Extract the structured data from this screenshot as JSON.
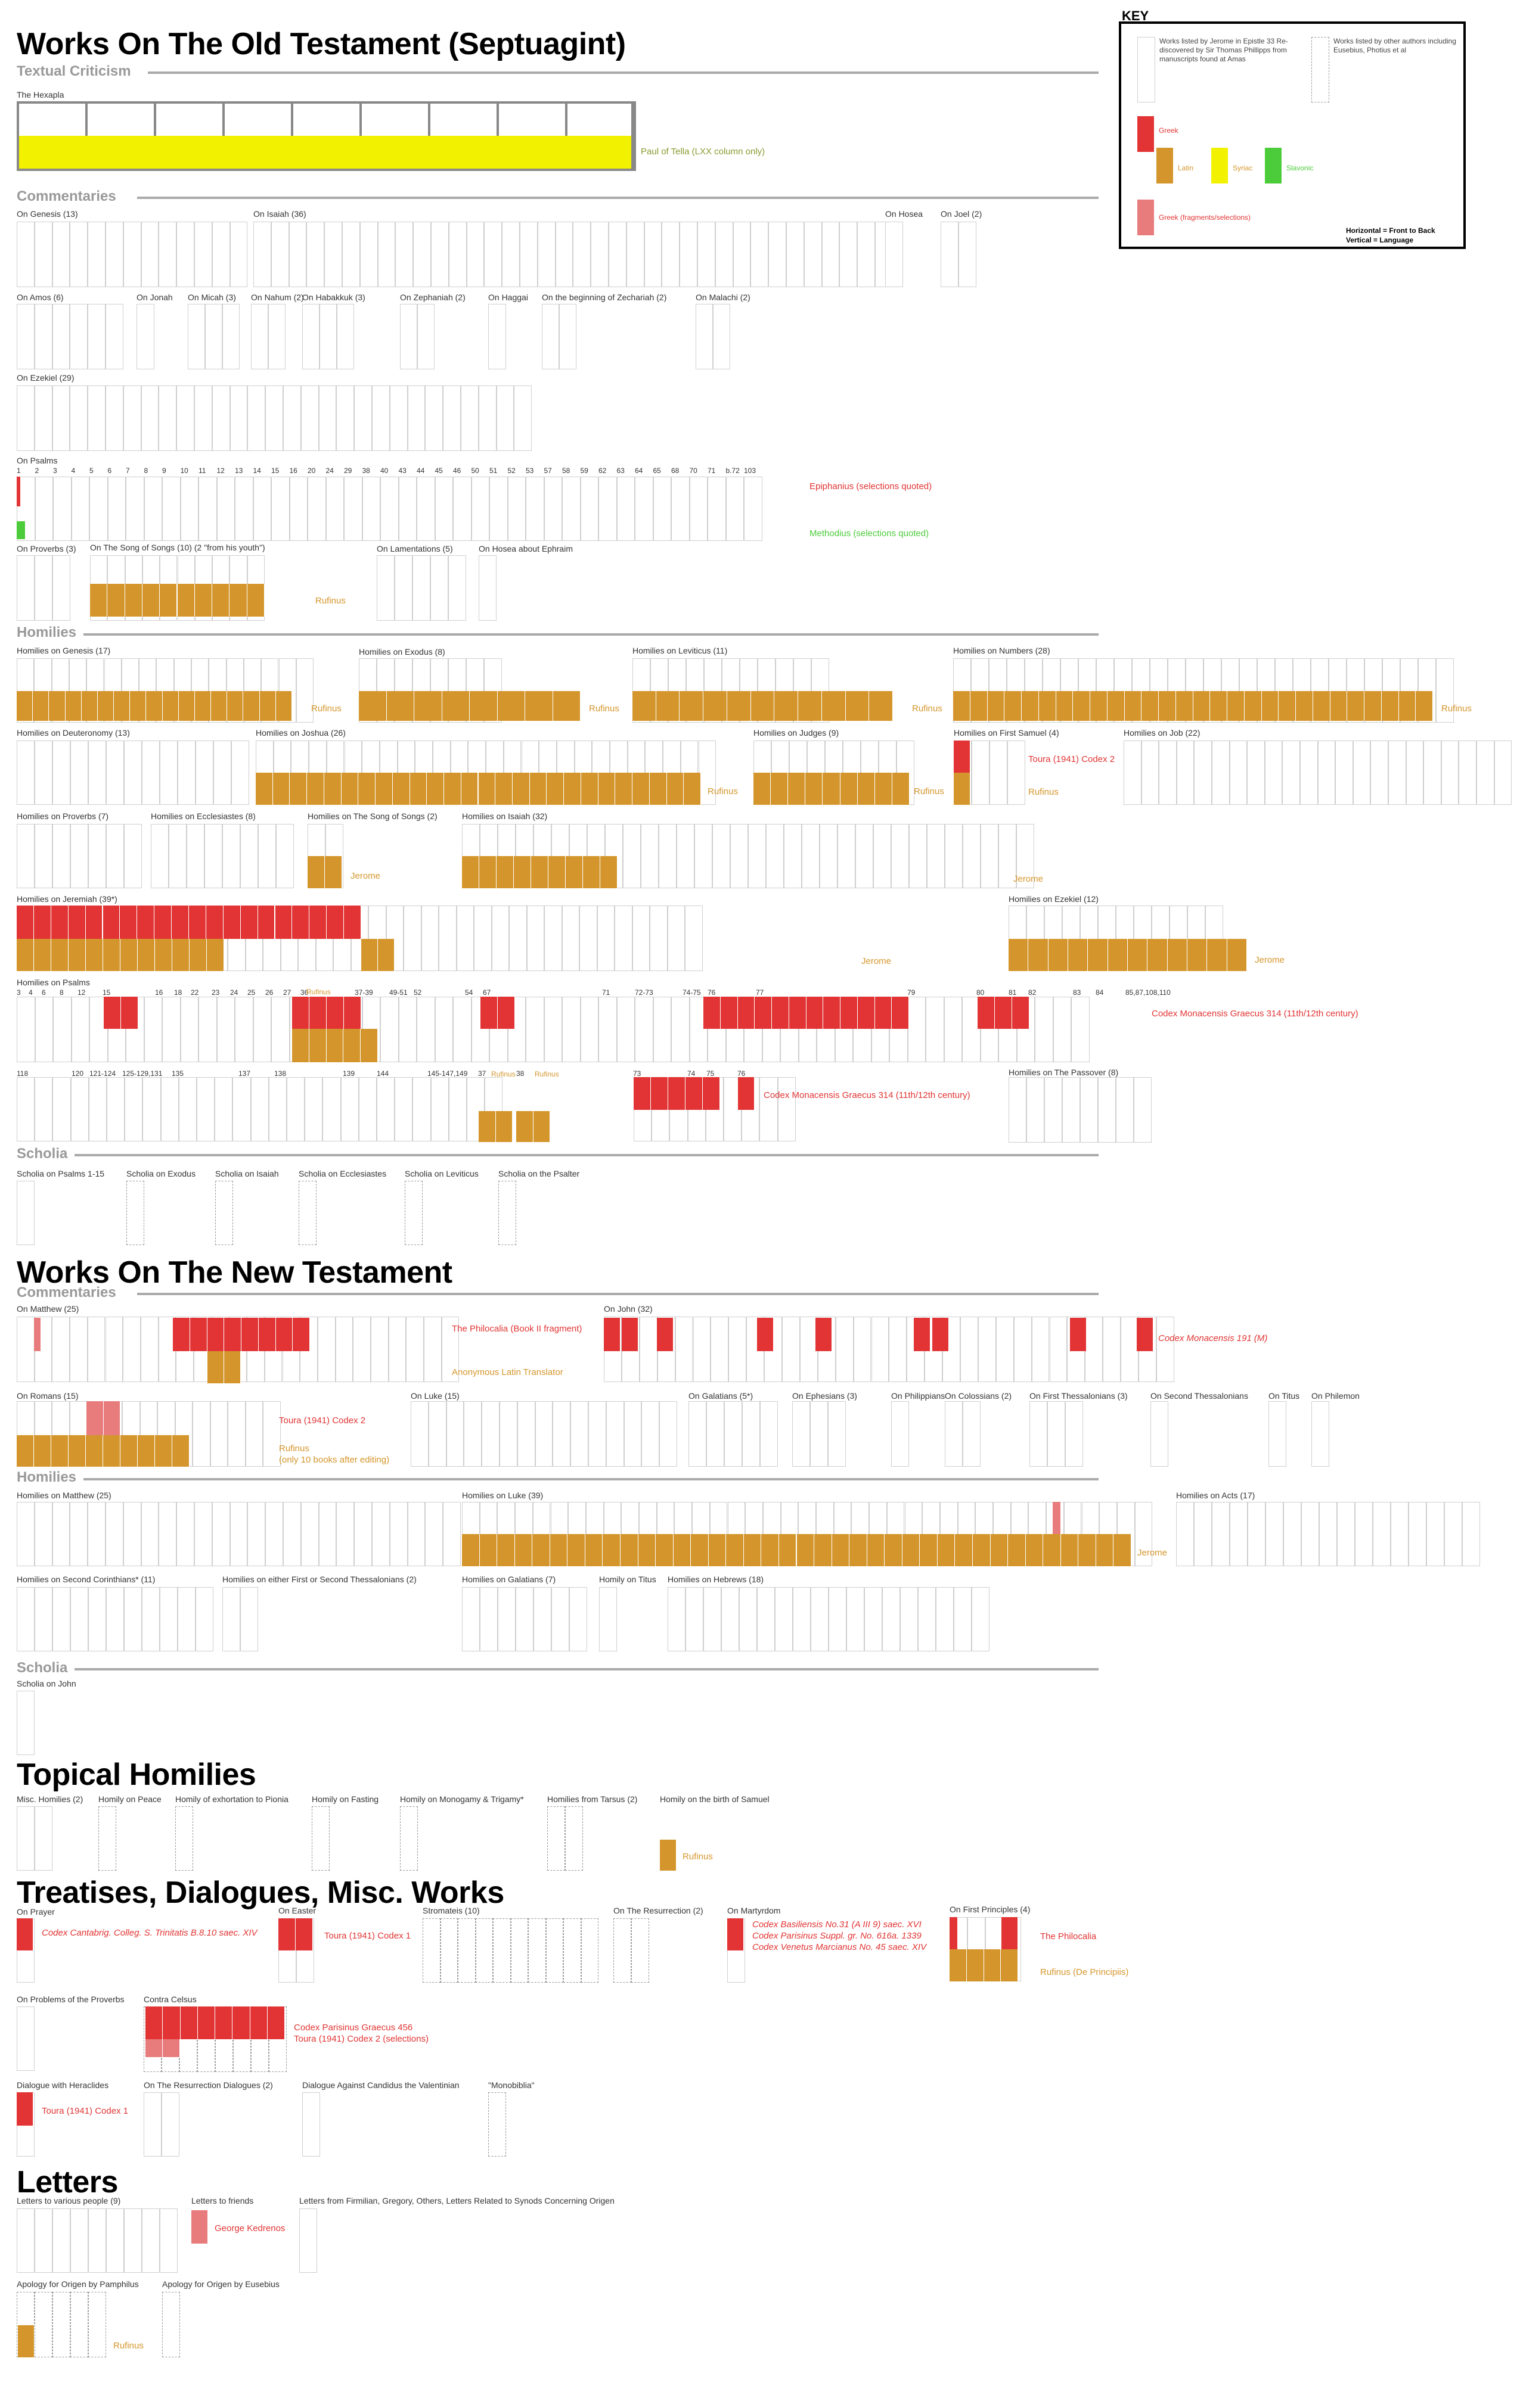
{
  "colors": {
    "greek": "#e23434",
    "latin": "#d4962c",
    "syriac": "#f2f200",
    "slavonic": "#4ccc3a",
    "greek_fragments": "#e87c7c",
    "book_border": "#cfcfcf",
    "rule": "#aaaaaa",
    "subheading": "#999999"
  },
  "headings": {
    "ot": "Works On The Old Testament (Septuagint)",
    "nt": "Works On The New Testament",
    "topical": "Topical Homilies",
    "treatises": "Treatises, Dialogues, Misc. Works",
    "letters": "Letters",
    "textual_criticism": "Textual Criticism",
    "commentaries": "Commentaries",
    "homilies": "Homilies",
    "scholia": "Scholia"
  },
  "key": {
    "title": "KEY",
    "jerome": "Works listed by Jerome in Epistle 33 Re-discovered by Sir Thomas Phillipps from manuscripts found at Amas",
    "others": "Works listed by other authors including Eusebius, Photius et al",
    "greek": "Greek",
    "latin": "Latin",
    "syriac": "Syriac",
    "slavonic": "Slavonic",
    "greek_fragments": "Greek (fragments/selections)",
    "horizontal": "Horizontal = Front to Back",
    "vertical": "Vertical = Language"
  },
  "notes": {
    "paul_of_tella": "Paul of Tella (LXX column only)",
    "epiphanius": "Epiphanius (selections quoted)",
    "methodius": "Methodius (selections quoted)",
    "rufinus": "Rufinus",
    "jerome": "Jerome",
    "toura_codex2": "Toura (1941) Codex 2",
    "codex_monacensis_314": "Codex Monacensis Graecus 314 (11th/12th century)",
    "philocalia_fragment": "The Philocalia (Book II fragment)",
    "anonymous_latin": "Anonymous Latin Translator",
    "codex_monacensis_191": "Codex Monacensis 191 (M)",
    "rufinus_romans": "Rufinus\n(only 10 books after editing)",
    "cantabrig": "Codex Cantabrig. Colleg. S. Trinitatis B.8.10 saec. XIV",
    "toura_codex1": "Toura (1941) Codex 1",
    "martyrdom": "Codex Basiliensis No.31 (A III 9) saec. XVI\nCodex Parisinus Suppl. gr. No. 616a. 1339\nCodex Venetus Marcianus No. 45 saec. XIV",
    "philocalia": "The Philocalia",
    "rufinus_principiis": "Rufinus (De Principiis)",
    "contra_celsus": "Codex Parisinus Graecus 456\nToura (1941) Codex 2 (selections)",
    "george_kedrenos": "George Kedrenos"
  },
  "psalm_numbers_top": [
    "1",
    "2",
    "3",
    "4",
    "5",
    "6",
    "7",
    "8",
    "9",
    "10",
    "11",
    "12",
    "13",
    "14",
    "15",
    "16",
    "20",
    "24",
    "29",
    "38",
    "40",
    "43",
    "44",
    "45",
    "46",
    "50",
    "51",
    "52",
    "53",
    "57",
    "58",
    "59",
    "62",
    "63",
    "64",
    "65",
    "68",
    "70",
    "71",
    "b.72",
    "103"
  ],
  "hom_psalm_numbers_1": [
    "3",
    "4",
    "6",
    "8",
    "12",
    "15",
    "16",
    "18",
    "22",
    "23",
    "24",
    "25",
    "26",
    "27",
    "36",
    "37-39",
    "49-51",
    "52",
    "54",
    "67",
    "71",
    "72-73",
    "74-75",
    "76",
    "77",
    "79",
    "80",
    "81",
    "82",
    "83",
    "84",
    "85,87,108,110"
  ],
  "hom_psalm_numbers_2": [
    "118",
    "120",
    "121-124",
    "125-129,131",
    "135",
    "137",
    "138",
    "139",
    "144",
    "145-147,149",
    "37",
    "38",
    "73",
    "74",
    "75",
    "76"
  ],
  "works": [
    {
      "id": "hexapla",
      "label": "The Hexapla"
    },
    {
      "id": "c-genesis",
      "label": "On Genesis (13)"
    },
    {
      "id": "c-isaiah",
      "label": "On Isaiah (36)"
    },
    {
      "id": "c-hosea",
      "label": "On Hosea"
    },
    {
      "id": "c-joel",
      "label": "On Joel (2)"
    },
    {
      "id": "c-amos",
      "label": "On Amos (6)"
    },
    {
      "id": "c-jonah",
      "label": "On Jonah"
    },
    {
      "id": "c-micah",
      "label": "On Micah (3)"
    },
    {
      "id": "c-nahum",
      "label": "On Nahum (2)"
    },
    {
      "id": "c-habakkuk",
      "label": "On Habakkuk (3)"
    },
    {
      "id": "c-zephaniah",
      "label": "On Zephaniah (2)"
    },
    {
      "id": "c-haggai",
      "label": "On Haggai"
    },
    {
      "id": "c-zechariah",
      "label": "On the beginning of Zechariah (2)"
    },
    {
      "id": "c-malachi",
      "label": "On Malachi (2)"
    },
    {
      "id": "c-ezekiel",
      "label": "On Ezekiel (29)"
    },
    {
      "id": "c-psalms",
      "label": "On Psalms"
    },
    {
      "id": "c-proverbs",
      "label": "On Proverbs (3)"
    },
    {
      "id": "c-song",
      "label": "On The Song of Songs (10) (2 \"from his youth\")"
    },
    {
      "id": "c-lamentations",
      "label": "On Lamentations (5)"
    },
    {
      "id": "c-hosea-ephraim",
      "label": "On Hosea about Ephraim"
    },
    {
      "id": "h-genesis",
      "label": "Homilies on Genesis (17)"
    },
    {
      "id": "h-exodus",
      "label": "Homilies on Exodus (8)"
    },
    {
      "id": "h-leviticus",
      "label": "Homilies on Leviticus (11)"
    },
    {
      "id": "h-numbers",
      "label": "Homilies on Numbers (28)"
    },
    {
      "id": "h-deuteronomy",
      "label": "Homilies on Deuteronomy (13)"
    },
    {
      "id": "h-joshua",
      "label": "Homilies on Joshua (26)"
    },
    {
      "id": "h-judges",
      "label": "Homilies on Judges (9)"
    },
    {
      "id": "h-samuel",
      "label": "Homilies on First Samuel (4)"
    },
    {
      "id": "h-job",
      "label": "Homilies on Job (22)"
    },
    {
      "id": "h-proverbs",
      "label": "Homilies on Proverbs (7)"
    },
    {
      "id": "h-ecclesiastes",
      "label": "Homilies on Ecclesiastes (8)"
    },
    {
      "id": "h-song",
      "label": "Homilies on The Song of Songs (2)"
    },
    {
      "id": "h-isaiah",
      "label": "Homilies on Isaiah (32)"
    },
    {
      "id": "h-jeremiah",
      "label": "Homilies on Jeremiah (39*)"
    },
    {
      "id": "h-ezekiel",
      "label": "Homilies on Ezekiel (12)"
    },
    {
      "id": "h-psalms",
      "label": "Homilies on Psalms"
    },
    {
      "id": "h-passover",
      "label": "Homilies on The Passover (8)"
    },
    {
      "id": "s-psalms",
      "label": "Scholia on Psalms 1-15"
    },
    {
      "id": "s-exodus",
      "label": "Scholia on Exodus"
    },
    {
      "id": "s-isaiah",
      "label": "Scholia on Isaiah"
    },
    {
      "id": "s-ecclesiastes",
      "label": "Scholia on Ecclesiastes"
    },
    {
      "id": "s-leviticus",
      "label": "Scholia on Leviticus"
    },
    {
      "id": "s-psalter",
      "label": "Scholia on the Psalter"
    },
    {
      "id": "nt-matthew",
      "label": "On Matthew (25)"
    },
    {
      "id": "nt-john",
      "label": "On John (32)"
    },
    {
      "id": "nt-romans",
      "label": "On Romans (15)"
    },
    {
      "id": "nt-luke",
      "label": "On Luke (15)"
    },
    {
      "id": "nt-galatians",
      "label": "On Galatians (5*)"
    },
    {
      "id": "nt-ephesians",
      "label": "On Ephesians (3)"
    },
    {
      "id": "nt-philippians",
      "label": "On Philippians"
    },
    {
      "id": "nt-colossians",
      "label": "On Colossians (2)"
    },
    {
      "id": "nt-1thess",
      "label": "On First Thessalonians (3)"
    },
    {
      "id": "nt-2thess",
      "label": "On Second Thessalonians"
    },
    {
      "id": "nt-titus",
      "label": "On Titus"
    },
    {
      "id": "nt-philemon",
      "label": "On Philemon"
    },
    {
      "id": "nth-matthew",
      "label": "Homilies on Matthew (25)"
    },
    {
      "id": "nth-luke",
      "label": "Homilies on Luke (39)"
    },
    {
      "id": "nth-acts",
      "label": "Homilies on Acts (17)"
    },
    {
      "id": "nth-2cor",
      "label": "Homilies on Second Corinthians* (11)"
    },
    {
      "id": "nth-thess",
      "label": "Homilies on either First or Second Thessalonians (2)"
    },
    {
      "id": "nth-galatians",
      "label": "Homilies on Galatians (7)"
    },
    {
      "id": "nth-titus",
      "label": "Homily on Titus"
    },
    {
      "id": "nth-hebrews",
      "label": "Homilies on Hebrews (18)"
    },
    {
      "id": "nts-john",
      "label": "Scholia on John"
    },
    {
      "id": "t-misc",
      "label": "Misc. Homilies (2)"
    },
    {
      "id": "t-peace",
      "label": "Homily on Peace"
    },
    {
      "id": "t-pionia",
      "label": "Homily of exhortation to Pionia"
    },
    {
      "id": "t-fasting",
      "label": "Homily on Fasting"
    },
    {
      "id": "t-monogamy",
      "label": "Homily on Monogamy & Trigamy*"
    },
    {
      "id": "t-tarsus",
      "label": "Homilies from Tarsus (2)"
    },
    {
      "id": "t-samuel",
      "label": "Homily on the birth of Samuel"
    },
    {
      "id": "m-prayer",
      "label": "On Prayer"
    },
    {
      "id": "m-easter",
      "label": "On Easter"
    },
    {
      "id": "m-stromateis",
      "label": "Stromateis (10)"
    },
    {
      "id": "m-resurrection",
      "label": "On The Resurrection (2)"
    },
    {
      "id": "m-martyrdom",
      "label": "On Martyrdom"
    },
    {
      "id": "m-principles",
      "label": "On First Principles (4)"
    },
    {
      "id": "m-problems",
      "label": "On Problems of the Proverbs"
    },
    {
      "id": "m-celsus",
      "label": "Contra Celsus"
    },
    {
      "id": "m-heraclides",
      "label": "Dialogue with Heraclides"
    },
    {
      "id": "m-resurrection-dial",
      "label": "On The Resurrection Dialogues (2)"
    },
    {
      "id": "m-candidus",
      "label": "Dialogue Against Candidus the Valentinian"
    },
    {
      "id": "m-monobiblia",
      "label": "\"Monobiblia\""
    },
    {
      "id": "l-various",
      "label": "Letters to various people (9)"
    },
    {
      "id": "l-friends",
      "label": "Letters to friends"
    },
    {
      "id": "l-firmilian",
      "label": "Letters from Firmilian, Gregory, Others, Letters Related to Synods Concerning Origen"
    },
    {
      "id": "l-pamphilus",
      "label": "Apology for Origen by Pamphilus"
    },
    {
      "id": "l-eusebius",
      "label": "Apology for Origen by Eusebius"
    }
  ]
}
